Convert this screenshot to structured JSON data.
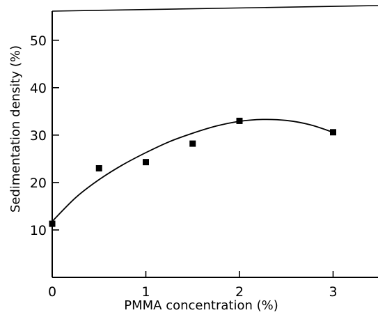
{
  "chart_data": {
    "type": "scatter",
    "title": "",
    "xlabel": "PMMA concentration (%)",
    "ylabel": "Sedimentation density (%)",
    "xlim": [
      0,
      3.5
    ],
    "ylim": [
      0,
      56
    ],
    "x_ticks": [
      0,
      1,
      2,
      3
    ],
    "y_ticks": [
      10,
      20,
      30,
      40,
      50
    ],
    "x_tick_labels": [
      "0",
      "1",
      "2",
      "3"
    ],
    "y_tick_labels": [
      "10",
      "20",
      "30",
      "40",
      "50"
    ],
    "grid": false,
    "legend": "none",
    "series": [
      {
        "marker": "square",
        "color": "#000000",
        "x": [
          0,
          0.5,
          1.0,
          1.5,
          2.0,
          3.0
        ],
        "y": [
          11.3,
          23.0,
          24.3,
          28.2,
          33.0,
          30.6
        ]
      }
    ],
    "fit_curve": {
      "style": "smooth line",
      "color": "#000000",
      "x": [
        0,
        0.25,
        0.5,
        0.75,
        1.0,
        1.25,
        1.5,
        1.75,
        2.0,
        2.25,
        2.5,
        2.75,
        3.0
      ],
      "y": [
        11.8,
        16.8,
        20.6,
        23.7,
        26.3,
        28.6,
        30.4,
        31.9,
        32.9,
        33.3,
        33.1,
        32.2,
        30.6
      ]
    }
  }
}
